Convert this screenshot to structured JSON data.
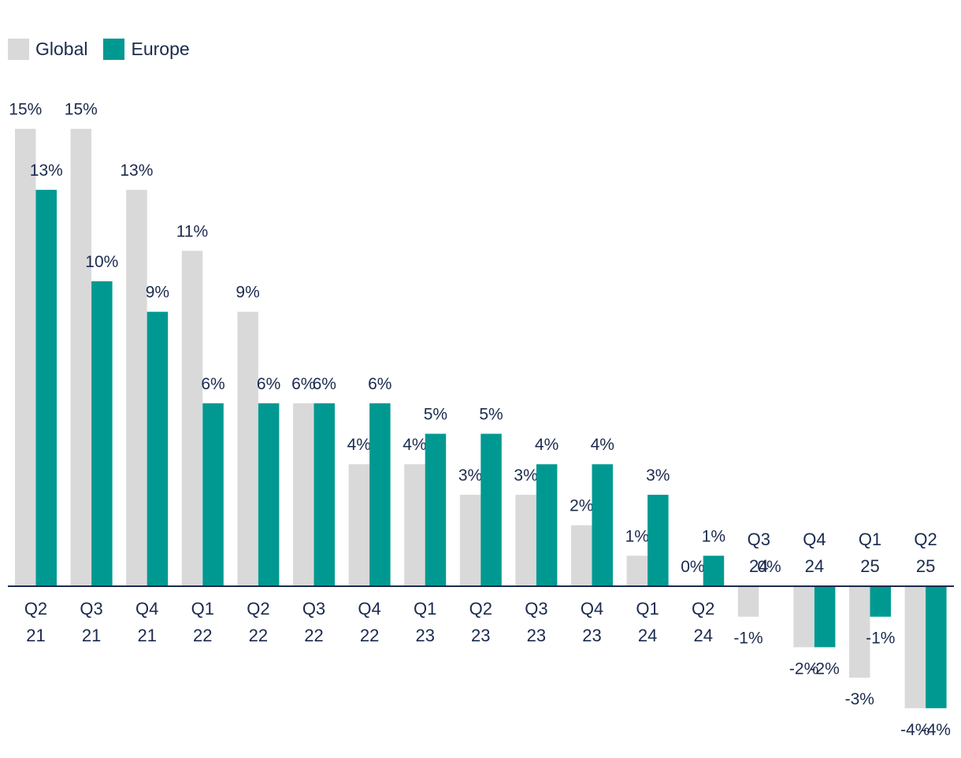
{
  "chart_data": {
    "type": "bar",
    "categories": [
      "Q2 21",
      "Q3 21",
      "Q4 21",
      "Q1 22",
      "Q2 22",
      "Q3 22",
      "Q4 22",
      "Q1 23",
      "Q2 23",
      "Q3 23",
      "Q4 23",
      "Q1 24",
      "Q2 24",
      "Q3 24",
      "Q4 24",
      "Q1 25",
      "Q2 25"
    ],
    "series": [
      {
        "name": "Global",
        "color": "#d9d9d9",
        "values": [
          15,
          15,
          13,
          11,
          9,
          6,
          4,
          4,
          3,
          3,
          2,
          1,
          0,
          -1,
          -2,
          -3,
          -4
        ],
        "labels": [
          "15%",
          "15%",
          "13%",
          "11%",
          "9%",
          "6%",
          "4%",
          "4%",
          "3%",
          "3%",
          "2%",
          "1%",
          "0%",
          "-1%",
          "-2%",
          "-3%",
          "-4%"
        ]
      },
      {
        "name": "Europe",
        "color": "#009991",
        "values": [
          13,
          10,
          9,
          6,
          6,
          6,
          6,
          5,
          5,
          4,
          4,
          3,
          1,
          0,
          -2,
          -1,
          -4
        ],
        "labels": [
          "13%",
          "10%",
          "9%",
          "6%",
          "6%",
          "6%",
          "6%",
          "5%",
          "5%",
          "4%",
          "4%",
          "3%",
          "1%",
          "0%",
          "-2%",
          "-1%",
          "-4%"
        ]
      }
    ],
    "ylim": [
      -4.5,
      16
    ],
    "legend_position": "top-left",
    "grid": false,
    "colors": {
      "axis": "#1b2a4e",
      "text": "#1b2a4e"
    }
  }
}
